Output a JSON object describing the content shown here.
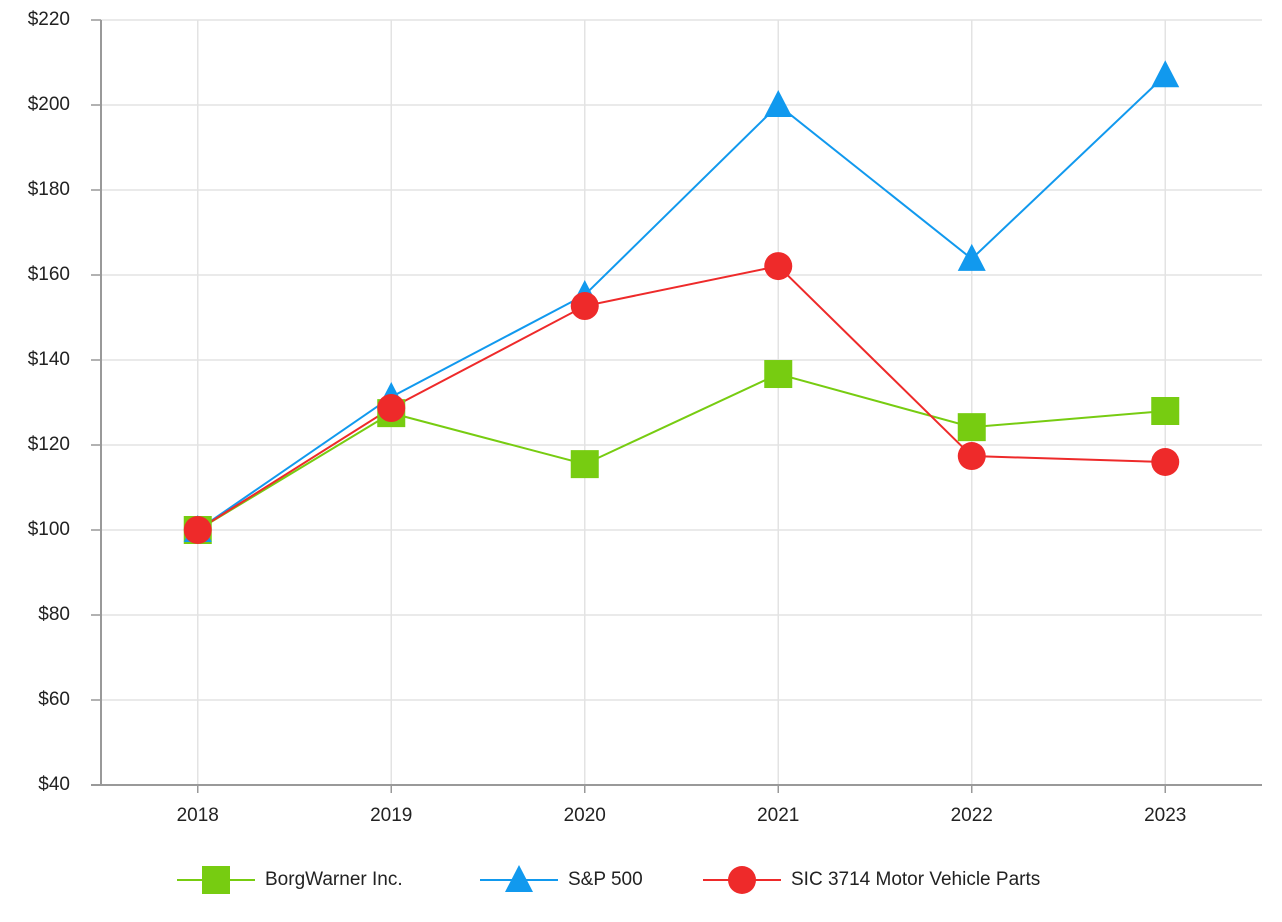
{
  "chart_data": {
    "type": "line",
    "categories": [
      "2018",
      "2019",
      "2020",
      "2021",
      "2022",
      "2023"
    ],
    "series": [
      {
        "name": "BorgWarner Inc.",
        "color": "#77cc11",
        "marker": "square",
        "values": [
          100,
          127.5,
          115.5,
          136.7,
          124.2,
          128
        ]
      },
      {
        "name": "S&P 500",
        "color": "#1199ee",
        "marker": "triangle",
        "values": [
          100,
          131.3,
          155.3,
          200,
          163.8,
          207
        ]
      },
      {
        "name": "SIC 3714 Motor Vehicle Parts",
        "color": "#ee2a2a",
        "marker": "circle",
        "values": [
          100,
          128.7,
          152.7,
          162.1,
          117.4,
          116
        ]
      }
    ],
    "ylim": [
      40,
      220
    ],
    "yticks": [
      {
        "value": 40,
        "label": "$40"
      },
      {
        "value": 60,
        "label": "$60"
      },
      {
        "value": 80,
        "label": "$80"
      },
      {
        "value": 100,
        "label": "$100"
      },
      {
        "value": 120,
        "label": "$120"
      },
      {
        "value": 140,
        "label": "$140"
      },
      {
        "value": 160,
        "label": "$160"
      },
      {
        "value": 180,
        "label": "$180"
      },
      {
        "value": 200,
        "label": "$200"
      },
      {
        "value": 220,
        "label": "$220"
      }
    ],
    "grid": true,
    "legend": "bottom"
  }
}
